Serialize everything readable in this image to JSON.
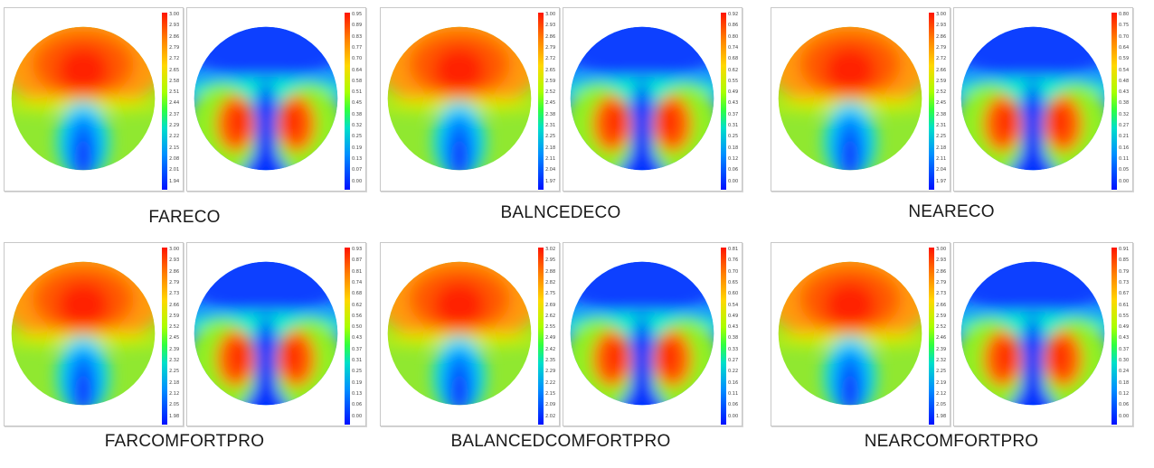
{
  "figures": [
    {
      "caption": "FARECO",
      "power_scale": [
        "3.00",
        "2.93",
        "2.86",
        "2.79",
        "2.72",
        "2.65",
        "2.58",
        "2.51",
        "2.44",
        "2.37",
        "2.29",
        "2.22",
        "2.15",
        "2.08",
        "2.01",
        "1.94"
      ],
      "cylinder_scale": [
        "0.95",
        "0.89",
        "0.83",
        "0.77",
        "0.70",
        "0.64",
        "0.58",
        "0.51",
        "0.45",
        "0.38",
        "0.32",
        "0.25",
        "0.19",
        "0.13",
        "0.07",
        "0.00"
      ]
    },
    {
      "caption": "BALNCEDECO",
      "power_scale": [
        "3.00",
        "2.93",
        "2.86",
        "2.79",
        "2.72",
        "2.65",
        "2.59",
        "2.52",
        "2.45",
        "2.38",
        "2.31",
        "2.25",
        "2.18",
        "2.11",
        "2.04",
        "1.97"
      ],
      "cylinder_scale": [
        "0.92",
        "0.86",
        "0.80",
        "0.74",
        "0.68",
        "0.62",
        "0.55",
        "0.49",
        "0.43",
        "0.37",
        "0.31",
        "0.25",
        "0.18",
        "0.12",
        "0.06",
        "0.00"
      ]
    },
    {
      "caption": "NEARECO",
      "power_scale": [
        "3.00",
        "2.93",
        "2.86",
        "2.79",
        "2.72",
        "2.66",
        "2.59",
        "2.52",
        "2.45",
        "2.38",
        "2.31",
        "2.25",
        "2.18",
        "2.11",
        "2.04",
        "1.97"
      ],
      "cylinder_scale": [
        "0.80",
        "0.75",
        "0.70",
        "0.64",
        "0.59",
        "0.54",
        "0.48",
        "0.43",
        "0.38",
        "0.32",
        "0.27",
        "0.21",
        "0.16",
        "0.11",
        "0.05",
        "0.00"
      ]
    },
    {
      "caption": "FARCOMFORTPRO",
      "power_scale": [
        "3.00",
        "2.93",
        "2.86",
        "2.79",
        "2.73",
        "2.66",
        "2.59",
        "2.52",
        "2.45",
        "2.39",
        "2.32",
        "2.25",
        "2.18",
        "2.12",
        "2.05",
        "1.98"
      ],
      "cylinder_scale": [
        "0.93",
        "0.87",
        "0.81",
        "0.74",
        "0.68",
        "0.62",
        "0.56",
        "0.50",
        "0.43",
        "0.37",
        "0.31",
        "0.25",
        "0.19",
        "0.13",
        "0.06",
        "0.00"
      ]
    },
    {
      "caption": "BALANCEDCOMFORTPRO",
      "power_scale": [
        "3.02",
        "2.95",
        "2.88",
        "2.82",
        "2.75",
        "2.69",
        "2.62",
        "2.55",
        "2.49",
        "2.42",
        "2.35",
        "2.29",
        "2.22",
        "2.15",
        "2.09",
        "2.02"
      ],
      "cylinder_scale": [
        "0.81",
        "0.76",
        "0.70",
        "0.65",
        "0.60",
        "0.54",
        "0.49",
        "0.43",
        "0.38",
        "0.33",
        "0.27",
        "0.22",
        "0.16",
        "0.11",
        "0.06",
        "0.00"
      ]
    },
    {
      "caption": "NEARCOMFORTPRO",
      "power_scale": [
        "3.00",
        "2.93",
        "2.86",
        "2.79",
        "2.73",
        "2.66",
        "2.59",
        "2.52",
        "2.46",
        "2.39",
        "2.32",
        "2.25",
        "2.19",
        "2.12",
        "2.05",
        "1.98"
      ],
      "cylinder_scale": [
        "0.91",
        "0.85",
        "0.79",
        "0.73",
        "0.67",
        "0.61",
        "0.55",
        "0.49",
        "0.43",
        "0.37",
        "0.30",
        "0.24",
        "0.18",
        "0.12",
        "0.06",
        "0.00"
      ]
    }
  ],
  "chart_data": {
    "type": "heatmap",
    "maps": [
      {
        "design": "FARECO",
        "power_range": [
          1.94,
          3.0
        ],
        "cylinder_range": [
          0.0,
          0.95
        ]
      },
      {
        "design": "BALNCEDECO",
        "power_range": [
          1.97,
          3.0
        ],
        "cylinder_range": [
          0.0,
          0.92
        ]
      },
      {
        "design": "NEARECO",
        "power_range": [
          1.97,
          3.0
        ],
        "cylinder_range": [
          0.0,
          0.8
        ]
      },
      {
        "design": "FARCOMFORTPRO",
        "power_range": [
          1.98,
          3.0
        ],
        "cylinder_range": [
          0.0,
          0.93
        ]
      },
      {
        "design": "BALANCEDCOMFORTPRO",
        "power_range": [
          2.02,
          3.02
        ],
        "cylinder_range": [
          0.0,
          0.81
        ]
      },
      {
        "design": "NEARCOMFORTPRO",
        "power_range": [
          1.98,
          3.0
        ],
        "cylinder_range": [
          0.0,
          0.91
        ]
      }
    ],
    "colormap": [
      "#0010ff",
      "#0090ff",
      "#00e0c8",
      "#30ff40",
      "#a8ff00",
      "#ffd800",
      "#ff8000",
      "#ff1400"
    ]
  }
}
